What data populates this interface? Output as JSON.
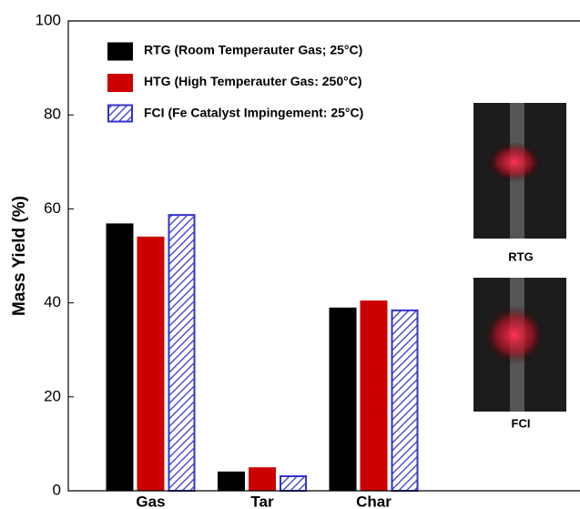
{
  "chart_data": {
    "type": "bar",
    "y_label": "Mass Yield (%)",
    "categories": [
      "Gas",
      "Tar",
      "Char"
    ],
    "series": [
      {
        "name": "RTG (Room Temperauter Gas; 25°C)",
        "color": "#000000",
        "values": [
          56.9,
          4.1,
          39.0
        ]
      },
      {
        "name": "HTG (High Temperauter Gas: 250°C)",
        "color": "#cc0000",
        "values": [
          54.1,
          5.0,
          40.5
        ]
      },
      {
        "name": "FCI (Fe Catalyst Impingement: 25°C)",
        "color": "#3333cc",
        "hatch": true,
        "values": [
          58.7,
          3.1,
          38.4
        ]
      }
    ],
    "ylim": [
      0,
      100
    ],
    "yticks": [
      0,
      20,
      40,
      60,
      80,
      100
    ],
    "inset_labels": [
      "RTG",
      "FCI"
    ]
  }
}
